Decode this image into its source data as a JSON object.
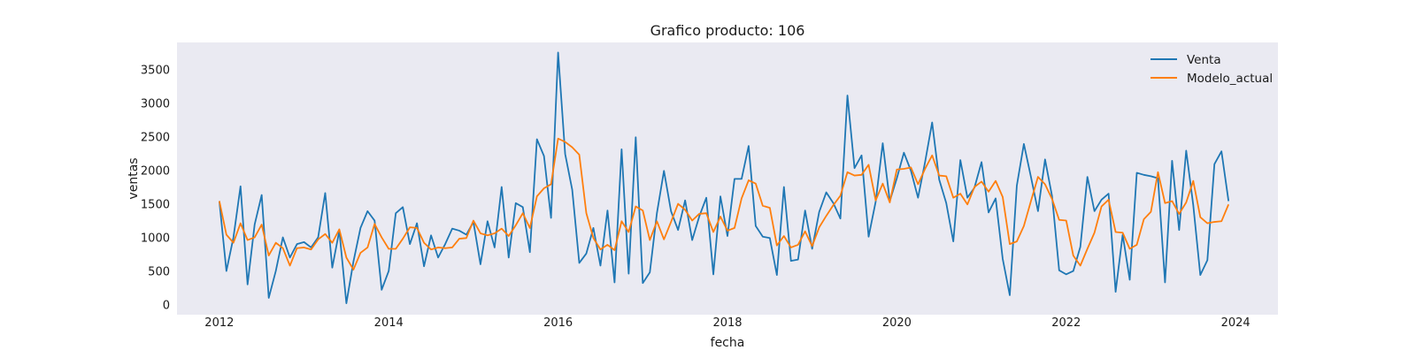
{
  "chart_data": {
    "type": "line",
    "title": "Grafico producto: 106",
    "xlabel": "fecha",
    "ylabel": "ventas",
    "x_start": "2012-01",
    "x_frequency": "monthly",
    "xlim": [
      "2011-07",
      "2024-07"
    ],
    "ylim": [
      -150,
      3900
    ],
    "xticks": [
      "2012",
      "2014",
      "2016",
      "2018",
      "2020",
      "2022",
      "2024"
    ],
    "yticks": [
      0,
      500,
      1000,
      1500,
      2000,
      2500,
      3000,
      3500
    ],
    "grid": false,
    "legend_position": "upper right",
    "colors": {
      "plot_bg": "#eaeaf2",
      "venta": "#1f77b4",
      "modelo": "#ff7f0e"
    },
    "series": [
      {
        "name": "Venta",
        "values": [
          1540,
          500,
          1000,
          1760,
          300,
          1190,
          1630,
          100,
          500,
          1000,
          700,
          900,
          930,
          850,
          1000,
          1660,
          550,
          1100,
          20,
          640,
          1140,
          1390,
          1250,
          220,
          500,
          1360,
          1450,
          900,
          1210,
          570,
          1030,
          700,
          900,
          1130,
          1100,
          1040,
          1230,
          600,
          1240,
          850,
          1750,
          700,
          1510,
          1450,
          780,
          2460,
          2210,
          1290,
          3750,
          2240,
          1710,
          620,
          760,
          1140,
          580,
          1400,
          330,
          2310,
          460,
          2490,
          320,
          480,
          1360,
          1990,
          1390,
          1110,
          1550,
          960,
          1310,
          1590,
          450,
          1610,
          1020,
          1870,
          1870,
          2360,
          1170,
          1010,
          990,
          440,
          1750,
          650,
          670,
          1400,
          830,
          1380,
          1670,
          1510,
          1280,
          3110,
          2030,
          2220,
          1010,
          1530,
          2400,
          1540,
          1880,
          2260,
          1990,
          1590,
          2120,
          2710,
          1860,
          1510,
          940,
          2150,
          1590,
          1740,
          2120,
          1370,
          1580,
          680,
          140,
          1770,
          2390,
          1900,
          1390,
          2160,
          1610,
          510,
          450,
          500,
          860,
          1900,
          1390,
          1560,
          1650,
          190,
          1040,
          370,
          1960,
          1930,
          1910,
          1880,
          330,
          2140,
          1110,
          2290,
          1480,
          440,
          660,
          2090,
          2280,
          1540
        ]
      },
      {
        "name": "Modelo_actual",
        "values": [
          1540,
          1040,
          920,
          1210,
          960,
          1000,
          1190,
          730,
          920,
          840,
          580,
          840,
          850,
          820,
          970,
          1050,
          920,
          1120,
          700,
          520,
          770,
          850,
          1200,
          1000,
          830,
          830,
          980,
          1150,
          1140,
          920,
          820,
          850,
          840,
          850,
          980,
          990,
          1250,
          1060,
          1030,
          1060,
          1130,
          1020,
          1180,
          1360,
          1140,
          1610,
          1730,
          1790,
          2470,
          2420,
          2340,
          2230,
          1360,
          990,
          820,
          890,
          810,
          1240,
          1080,
          1460,
          1400,
          960,
          1240,
          970,
          1230,
          1500,
          1410,
          1250,
          1350,
          1360,
          1080,
          1310,
          1100,
          1140,
          1580,
          1850,
          1800,
          1470,
          1440,
          880,
          1020,
          850,
          890,
          1090,
          870,
          1150,
          1320,
          1480,
          1620,
          1970,
          1920,
          1930,
          2080,
          1550,
          1800,
          1520,
          2010,
          2020,
          2040,
          1790,
          2020,
          2220,
          1920,
          1910,
          1590,
          1650,
          1490,
          1750,
          1830,
          1680,
          1840,
          1600,
          900,
          940,
          1170,
          1540,
          1900,
          1790,
          1570,
          1260,
          1250,
          730,
          580,
          830,
          1070,
          1460,
          1560,
          1080,
          1070,
          830,
          890,
          1270,
          1380,
          1970,
          1510,
          1540,
          1350,
          1520,
          1840,
          1300,
          1210,
          1230,
          1240,
          1490
        ]
      }
    ]
  }
}
